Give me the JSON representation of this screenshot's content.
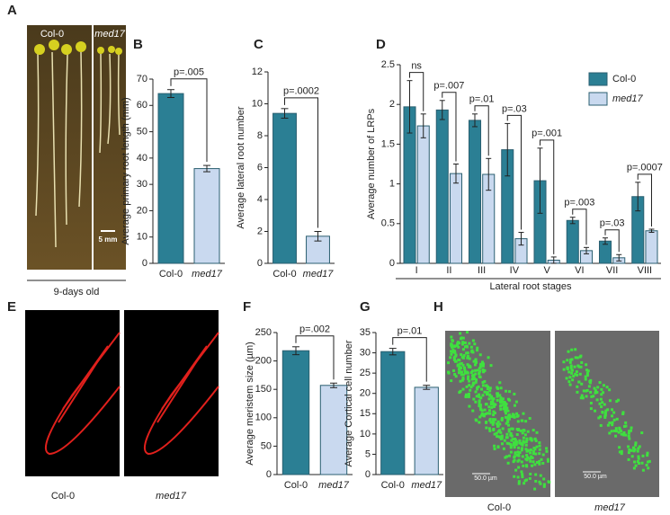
{
  "images": [
    {
      "panel": "A",
      "labels": [
        "Col-0",
        "med17"
      ],
      "scale": "5 mm",
      "caption": "9-days old"
    },
    {
      "panel": "E",
      "labels": [
        "Col-0",
        "med17"
      ]
    },
    {
      "panel": "H",
      "labels": [
        "Col-0",
        "med17"
      ],
      "scale": "50.0 µm"
    }
  ],
  "chart_data": [
    {
      "type": "bar",
      "panel": "B",
      "ylabel": "Average primary root length (mm)",
      "categories": [
        "Col-0",
        "med17"
      ],
      "values": [
        64.5,
        36
      ],
      "errors": [
        1.5,
        1.2
      ],
      "colors": [
        "#2b7f94",
        "#c9d9ef"
      ],
      "annotation": "p=.005",
      "ylim": [
        0,
        70
      ],
      "yticks": [
        0,
        10,
        20,
        30,
        40,
        50,
        60,
        70
      ]
    },
    {
      "type": "bar",
      "panel": "C",
      "ylabel": "Average lateral root number",
      "categories": [
        "Col-0",
        "med17"
      ],
      "values": [
        9.4,
        1.7
      ],
      "errors": [
        0.3,
        0.3
      ],
      "colors": [
        "#2b7f94",
        "#c9d9ef"
      ],
      "annotation": "p=.0002",
      "ylim": [
        0,
        12
      ],
      "yticks": [
        0,
        2,
        4,
        6,
        8,
        10,
        12
      ]
    },
    {
      "type": "grouped-bar",
      "panel": "D",
      "ylabel": "Average number of LRPs",
      "xlabel": "Lateral root stages",
      "categories": [
        "I",
        "II",
        "III",
        "IV",
        "V",
        "VI",
        "VII",
        "VIII"
      ],
      "series": [
        {
          "name": "Col-0",
          "color": "#2b7f94",
          "values": [
            1.97,
            1.93,
            1.8,
            1.43,
            1.04,
            0.54,
            0.28,
            0.84
          ],
          "errors": [
            0.33,
            0.12,
            0.08,
            0.33,
            0.41,
            0.04,
            0.04,
            0.18
          ]
        },
        {
          "name": "med17",
          "color": "#c9d9ef",
          "values": [
            1.73,
            1.13,
            1.12,
            0.31,
            0.04,
            0.16,
            0.07,
            0.41
          ],
          "errors": [
            0.15,
            0.12,
            0.2,
            0.08,
            0.04,
            0.04,
            0.04,
            0.02
          ]
        }
      ],
      "annotations": [
        "ns",
        "p=.007",
        "p=.01",
        "p=.03",
        "p=.001",
        "p=.003",
        "p=.03",
        "p=.0007"
      ],
      "ylim": [
        0,
        2.5
      ],
      "yticks": [
        0,
        0.5,
        1,
        1.5,
        2,
        2.5
      ],
      "legend": "upper right"
    },
    {
      "type": "bar",
      "panel": "F",
      "ylabel": "Average meristem size (µm)",
      "categories": [
        "Col-0",
        "med17"
      ],
      "values": [
        218,
        157
      ],
      "errors": [
        7,
        4
      ],
      "colors": [
        "#2b7f94",
        "#c9d9ef"
      ],
      "annotation": "p=.002",
      "ylim": [
        0,
        250
      ],
      "yticks": [
        0,
        50,
        100,
        150,
        200,
        250
      ]
    },
    {
      "type": "bar",
      "panel": "G",
      "ylabel": "Average Cortical cell number",
      "categories": [
        "Col-0",
        "med17"
      ],
      "values": [
        30.3,
        21.5
      ],
      "errors": [
        0.8,
        0.5
      ],
      "colors": [
        "#2b7f94",
        "#c9d9ef"
      ],
      "annotation": "p=.01",
      "ylim": [
        0,
        35
      ],
      "yticks": [
        0,
        5,
        10,
        15,
        20,
        25,
        30,
        35
      ]
    }
  ]
}
